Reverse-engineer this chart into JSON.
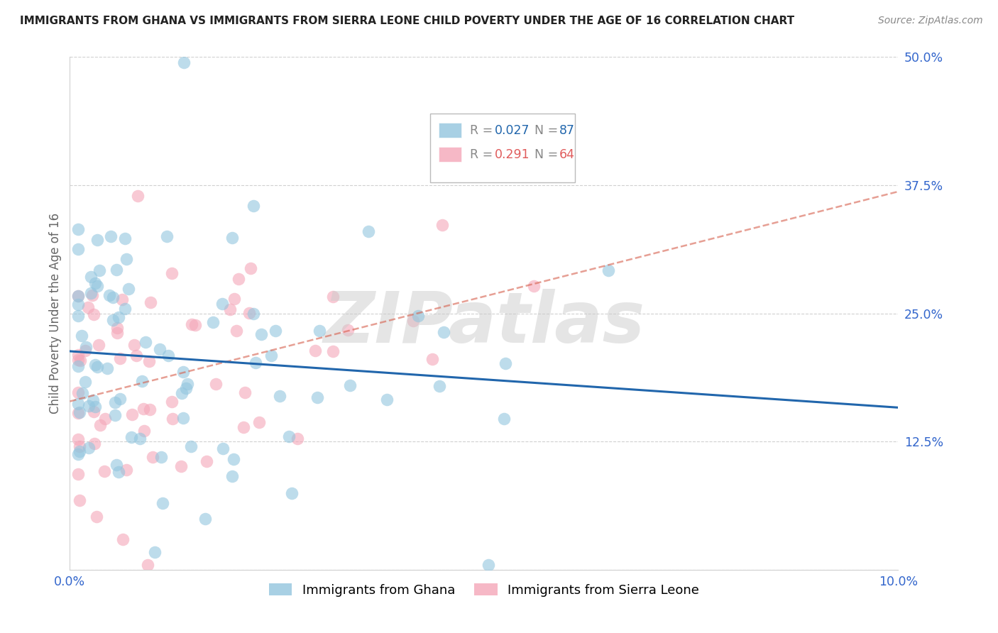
{
  "title": "IMMIGRANTS FROM GHANA VS IMMIGRANTS FROM SIERRA LEONE CHILD POVERTY UNDER THE AGE OF 16 CORRELATION CHART",
  "source": "Source: ZipAtlas.com",
  "ylabel": "Child Poverty Under the Age of 16",
  "xlim": [
    0.0,
    0.1
  ],
  "ylim": [
    0.0,
    0.5
  ],
  "yticks": [
    0.0,
    0.125,
    0.25,
    0.375,
    0.5
  ],
  "ytick_labels": [
    "",
    "12.5%",
    "25.0%",
    "37.5%",
    "50.0%"
  ],
  "ghana_color": "#92c5de",
  "sierra_leone_color": "#f4a6b8",
  "ghana_R": 0.027,
  "ghana_N": 87,
  "sierra_leone_R": 0.291,
  "sierra_leone_N": 64,
  "ghana_line_color": "#2166ac",
  "sierra_leone_line_color": "#d6604d",
  "watermark": "ZIPatlas",
  "background_color": "#ffffff",
  "legend_ghana_color": "#6baed6",
  "legend_sl_color": "#f768a1",
  "legend_R_color": "#2166ac",
  "legend_N_color": "#d7191c"
}
